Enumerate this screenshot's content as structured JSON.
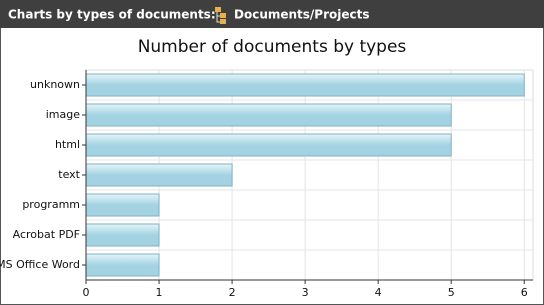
{
  "header": {
    "title": "Charts by types of documents:",
    "path": "Documents/Projects"
  },
  "chart_data": {
    "type": "hbar",
    "title": "Number of documents by types",
    "categories": [
      "unknown",
      "image",
      "html",
      "text",
      "programm",
      "Acrobat PDF",
      "MS Office Word"
    ],
    "values": [
      6,
      5,
      5,
      2,
      1,
      1,
      1
    ],
    "color": "#a3d3e3",
    "xlim": [
      0,
      6.12
    ],
    "xticks": [
      0,
      1,
      2,
      3,
      4,
      5,
      6
    ],
    "grid": true
  }
}
